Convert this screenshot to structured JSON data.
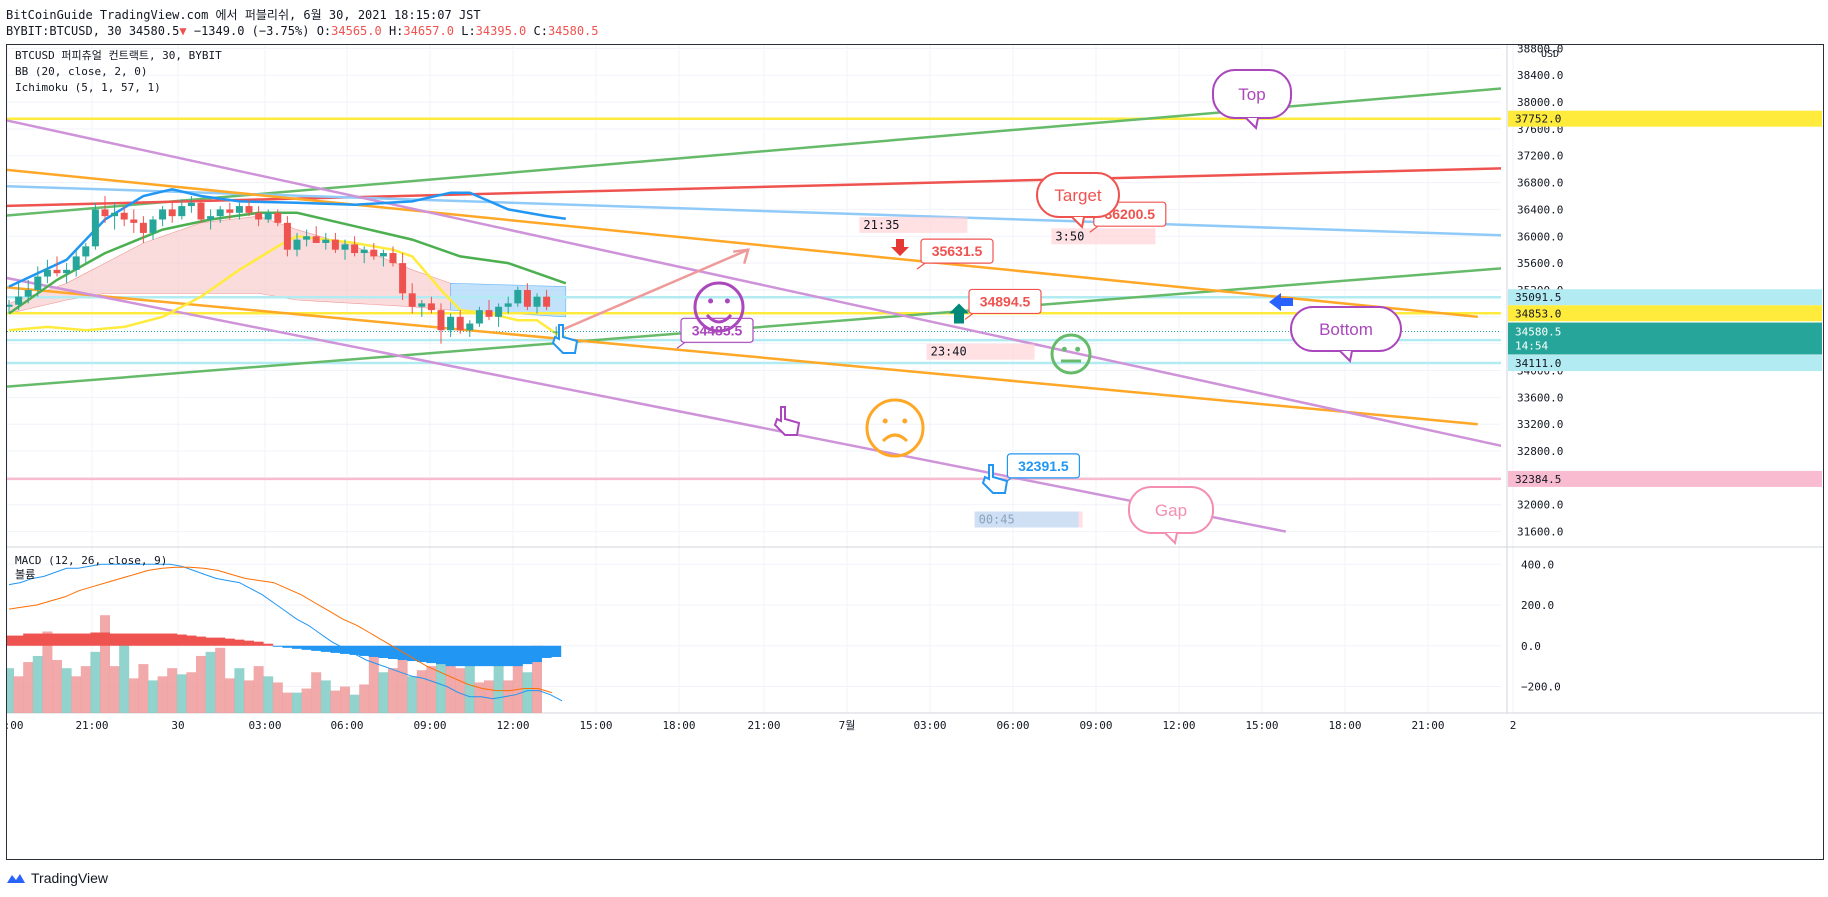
{
  "header": {
    "line1": "BitCoinGuide TradingView.com 에서 퍼블리쉬, 6월 30, 2021 18:15:07 JST",
    "line2_prefix": "BYBIT:BTCUSD, 30 34580.5",
    "line2_arrow": "▼",
    "line2_change": "−1349.0 (−3.75%)",
    "o_label": "O:",
    "o": "34565.0",
    "h_label": "H:",
    "h": "34657.0",
    "l_label": "L:",
    "l": "34395.0",
    "c_label": "C:",
    "c": "34580.5"
  },
  "legend": {
    "symbol": "BTCUSD 퍼피츄얼 컨트랙트, 30, BYBIT",
    "bb": "BB (20, close, 2, 0)",
    "ichimoku": "Ichimoku (5, 1, 57, 1)",
    "macd": "MACD (12, 26, close, 9)",
    "volume": "볼륨"
  },
  "footer": {
    "brand": "TradingView"
  },
  "colors": {
    "up": "#26a69a",
    "down": "#ef5350",
    "bb_basis": "#2196f3",
    "ichimoku_green": "#4caf50",
    "ichimoku_yellow": "#ffeb3b",
    "trend_green": "#66bb6a",
    "trend_red": "#ef5350",
    "trend_orange": "#ffa726",
    "trend_purple": "#ce93d8",
    "trend_blue": "#90caf9",
    "pink": "#f48fb1"
  },
  "chart_data": [
    {
      "type": "candlestick",
      "title": "BTCUSD 퍼피츄얼 컨트랙트, 30, BYBIT",
      "y_unit": "USD",
      "ylim": [
        31400,
        38850
      ],
      "y_ticks": [
        31600,
        32000,
        32400,
        32800,
        33200,
        33600,
        34000,
        34400,
        34800,
        35200,
        35600,
        36000,
        36400,
        36800,
        37200,
        37600,
        38000,
        38400,
        38800
      ],
      "x_ticks": [
        "18:00",
        "21:00",
        "30",
        "03:00",
        "06:00",
        "09:00",
        "12:00",
        "15:00",
        "18:00",
        "21:00",
        "7월",
        "03:00",
        "06:00",
        "09:00",
        "12:00",
        "15:00",
        "18:00",
        "21:00",
        "2"
      ],
      "candles": [
        [
          34950,
          35050,
          34850,
          34980
        ],
        [
          34980,
          35300,
          34900,
          35100
        ],
        [
          35100,
          35350,
          35000,
          35200
        ],
        [
          35200,
          35550,
          35100,
          35400
        ],
        [
          35400,
          35650,
          35300,
          35500
        ],
        [
          35500,
          35700,
          35400,
          35450
        ],
        [
          35450,
          35600,
          35300,
          35500
        ],
        [
          35500,
          35800,
          35400,
          35700
        ],
        [
          35700,
          35900,
          35600,
          35850
        ],
        [
          35850,
          36500,
          35800,
          36400
        ],
        [
          36400,
          36600,
          36200,
          36300
        ],
        [
          36300,
          36500,
          36100,
          36350
        ],
        [
          36350,
          36450,
          36150,
          36250
        ],
        [
          36250,
          36400,
          36050,
          36200
        ],
        [
          36200,
          36300,
          35900,
          36050
        ],
        [
          36050,
          36300,
          35950,
          36250
        ],
        [
          36250,
          36450,
          36150,
          36400
        ],
        [
          36400,
          36500,
          36200,
          36300
        ],
        [
          36300,
          36550,
          36250,
          36450
        ],
        [
          36450,
          36600,
          36350,
          36500
        ],
        [
          36500,
          36550,
          36200,
          36250
        ],
        [
          36250,
          36400,
          36100,
          36300
        ],
        [
          36300,
          36450,
          36200,
          36400
        ],
        [
          36400,
          36500,
          36250,
          36350
        ],
        [
          36350,
          36500,
          36250,
          36450
        ],
        [
          36450,
          36550,
          36300,
          36350
        ],
        [
          36350,
          36450,
          36150,
          36250
        ],
        [
          36250,
          36400,
          36200,
          36350
        ],
        [
          36350,
          36400,
          36150,
          36200
        ],
        [
          36200,
          36300,
          35700,
          35800
        ],
        [
          35800,
          36050,
          35700,
          35950
        ],
        [
          35950,
          36100,
          35850,
          36000
        ],
        [
          36000,
          36150,
          35900,
          35900
        ],
        [
          35900,
          36050,
          35800,
          35950
        ],
        [
          35950,
          36050,
          35750,
          35800
        ],
        [
          35800,
          35950,
          35650,
          35880
        ],
        [
          35880,
          36000,
          35700,
          35750
        ],
        [
          35750,
          35850,
          35600,
          35800
        ],
        [
          35800,
          35900,
          35650,
          35700
        ],
        [
          35700,
          35800,
          35550,
          35750
        ],
        [
          35750,
          35850,
          35550,
          35600
        ],
        [
          35600,
          35750,
          35050,
          35150
        ],
        [
          35150,
          35300,
          34850,
          34950
        ],
        [
          34950,
          35050,
          34800,
          35000
        ],
        [
          35000,
          35100,
          34850,
          34900
        ],
        [
          34900,
          35000,
          34400,
          34600
        ],
        [
          34600,
          34850,
          34500,
          34800
        ],
        [
          34800,
          34900,
          34550,
          34600
        ],
        [
          34600,
          34750,
          34500,
          34700
        ],
        [
          34700,
          34950,
          34650,
          34900
        ],
        [
          34900,
          35050,
          34750,
          34800
        ],
        [
          34800,
          35000,
          34650,
          34950
        ],
        [
          34950,
          35100,
          34850,
          35000
        ],
        [
          35000,
          35250,
          34950,
          35200
        ],
        [
          35200,
          35300,
          34900,
          34950
        ],
        [
          34950,
          35150,
          34850,
          35100
        ],
        [
          35100,
          35200,
          34900,
          34950
        ],
        [
          34565,
          34657,
          34395,
          34580.5
        ]
      ],
      "bb_basis": [
        [
          0,
          35250
        ],
        [
          6,
          35650
        ],
        [
          10,
          36250
        ],
        [
          14,
          36600
        ],
        [
          17,
          36700
        ],
        [
          20,
          36600
        ],
        [
          24,
          36520
        ],
        [
          30,
          36500
        ],
        [
          36,
          36470
        ],
        [
          42,
          36520
        ],
        [
          46,
          36650
        ],
        [
          48,
          36650
        ],
        [
          52,
          36400
        ],
        [
          56,
          36300
        ],
        [
          58,
          36260
        ]
      ],
      "ichimoku_green": [
        [
          0,
          34850
        ],
        [
          5,
          35350
        ],
        [
          10,
          35750
        ],
        [
          16,
          36100
        ],
        [
          21,
          36250
        ],
        [
          26,
          36350
        ],
        [
          30,
          36350
        ],
        [
          36,
          36150
        ],
        [
          42,
          35950
        ],
        [
          47,
          35700
        ],
        [
          52,
          35600
        ],
        [
          55,
          35450
        ],
        [
          58,
          35300
        ]
      ],
      "ichimoku_yellow": [
        [
          0,
          34600
        ],
        [
          4,
          34650
        ],
        [
          8,
          34600
        ],
        [
          12,
          34650
        ],
        [
          16,
          34800
        ],
        [
          20,
          35100
        ],
        [
          24,
          35500
        ],
        [
          28,
          35850
        ],
        [
          30,
          36000
        ],
        [
          33,
          35950
        ],
        [
          36,
          35900
        ],
        [
          40,
          35800
        ],
        [
          42,
          35700
        ],
        [
          45,
          35200
        ],
        [
          47,
          34900
        ],
        [
          50,
          34850
        ],
        [
          53,
          34750
        ],
        [
          55,
          34750
        ],
        [
          57,
          34550
        ],
        [
          58,
          34500
        ]
      ],
      "cloud_upper": [
        [
          0,
          35000
        ],
        [
          6,
          35300
        ],
        [
          10,
          35600
        ],
        [
          14,
          35900
        ],
        [
          20,
          36200
        ],
        [
          26,
          36300
        ],
        [
          30,
          36100
        ],
        [
          36,
          35850
        ],
        [
          42,
          35500
        ],
        [
          46,
          35300
        ],
        [
          58,
          35250
        ]
      ],
      "cloud_lower": [
        [
          0,
          34850
        ],
        [
          6,
          35050
        ],
        [
          10,
          35150
        ],
        [
          14,
          35150
        ],
        [
          20,
          35150
        ],
        [
          26,
          35150
        ],
        [
          30,
          35050
        ],
        [
          36,
          35000
        ],
        [
          42,
          34950
        ],
        [
          46,
          34900
        ],
        [
          58,
          34800
        ]
      ],
      "cloud_up_from": 46,
      "horizontal_levels": [
        {
          "value": 37752.0,
          "label": "37752.0",
          "color": "#ffeb3b"
        },
        {
          "value": 35091.5,
          "label": "35091.5",
          "color": "#b2ebf2"
        },
        {
          "value": 34853.0,
          "label": "34853.0",
          "color": "#ffeb3b"
        },
        {
          "value": 34453.5,
          "label": "34453.5",
          "color": "#b2ebf2"
        },
        {
          "value": 34111.0,
          "label": "34111.0",
          "color": "#b2ebf2"
        },
        {
          "value": 32384.5,
          "label": "32384.5",
          "color": "#f8bbd0"
        }
      ],
      "last_price": {
        "value": 34580.5,
        "label": "34580.5",
        "countdown": "14:54"
      },
      "trend_lines": [
        {
          "color": "#66bb6a",
          "from": [
            -1,
            36300
          ],
          "to": [
            180,
            38500
          ]
        },
        {
          "color": "#66bb6a",
          "from": [
            -1,
            33750
          ],
          "to": [
            180,
            35800
          ]
        },
        {
          "color": "#ef5350",
          "from": [
            -1,
            36450
          ],
          "to": [
            180,
            37100
          ]
        },
        {
          "color": "#90caf9",
          "from": [
            -1,
            36750
          ],
          "to": [
            180,
            35900
          ]
        },
        {
          "color": "#ffa726",
          "from": [
            -1,
            37000
          ],
          "to": [
            153,
            34800
          ]
        },
        {
          "color": "#ffa726",
          "from": [
            -1,
            35250
          ],
          "to": [
            153,
            33200
          ]
        },
        {
          "color": "#ce93d8",
          "from": [
            -1,
            37750
          ],
          "to": [
            174,
            32300
          ]
        },
        {
          "color": "#ce93d8",
          "from": [
            -1,
            35400
          ],
          "to": [
            133,
            31600
          ]
        }
      ],
      "price_labels": [
        {
          "text": "36200.5",
          "color": "#ef5350",
          "at": [
            113,
            36150
          ]
        },
        {
          "text": "35631.5",
          "color": "#ef5350",
          "at": [
            95,
            35600
          ]
        },
        {
          "text": "34894.5",
          "color": "#ef5350",
          "at": [
            100,
            34850
          ]
        },
        {
          "text": "34485.5",
          "color": "#ab47bc",
          "at": [
            70,
            34420
          ]
        },
        {
          "text": "32391.5",
          "color": "#2196f3",
          "at": [
            104,
            32400
          ]
        }
      ],
      "time_labels": [
        {
          "text": "21:35",
          "at": [
            89,
            36140
          ]
        },
        {
          "text": "3:50",
          "at": [
            109,
            35970
          ]
        },
        {
          "text": "23:40",
          "at": [
            96,
            34250
          ]
        },
        {
          "text": "00:45",
          "at": [
            101,
            31750
          ]
        }
      ],
      "callouts": [
        {
          "text": "Top",
          "color": "#ab47bc"
        },
        {
          "text": "Target",
          "color": "#ef5350"
        },
        {
          "text": "Bottom",
          "color": "#ab47bc"
        },
        {
          "text": "Gap",
          "color": "#f48fb1"
        }
      ]
    },
    {
      "type": "bar",
      "title": "MACD (12, 26, close, 9)",
      "ylim": [
        -330,
        470
      ],
      "y_ticks": [
        400,
        200,
        0,
        -200
      ],
      "y_tick_labels": [
        "400.0",
        "200.0",
        "0.0",
        "−200.0"
      ],
      "series": [
        {
          "name": "볼륨",
          "values": [
            220,
            180,
            250,
            280,
            400,
            260,
            220,
            180,
            230,
            300,
            480,
            230,
            380,
            170,
            240,
            160,
            180,
            220,
            190,
            200,
            280,
            300,
            320,
            170,
            220,
            160,
            230,
            180,
            150,
            100,
            100,
            120,
            200,
            160,
            110,
            130,
            90,
            140,
            300,
            200,
            220,
            280,
            180,
            210,
            230,
            250,
            300,
            220,
            300,
            150,
            160,
            300,
            160,
            250,
            200,
            330
          ]
        },
        {
          "name": "MACD",
          "values": [
            300,
            310,
            330,
            340,
            360,
            380,
            380,
            390,
            400,
            400,
            400,
            400,
            400,
            400,
            400,
            390,
            370,
            350,
            330,
            320,
            310,
            280,
            250,
            210,
            170,
            130,
            100,
            60,
            20,
            -10,
            -40,
            -70,
            -90,
            -110,
            -130,
            -150,
            -160,
            -180,
            -200,
            -230,
            -250,
            -250,
            -260,
            -250,
            -240,
            -220,
            -220,
            -240,
            -270
          ]
        },
        {
          "name": "Signal",
          "values": [
            180,
            190,
            200,
            220,
            240,
            270,
            290,
            310,
            330,
            350,
            370,
            380,
            385,
            385,
            380,
            370,
            350,
            330,
            320,
            310,
            280,
            250,
            210,
            170,
            130,
            100,
            60,
            20,
            -20,
            -60,
            -100,
            -130,
            -160,
            -190,
            -210,
            -220,
            -220,
            -210,
            -210,
            -230
          ]
        },
        {
          "name": "Histogram",
          "values": [
            50,
            50,
            60,
            60,
            60,
            60,
            60,
            60,
            60,
            65,
            65,
            60,
            60,
            60,
            60,
            60,
            60,
            60,
            55,
            50,
            45,
            40,
            40,
            35,
            30,
            25,
            20,
            10,
            -5,
            -10,
            -15,
            -20,
            -25,
            -30,
            -35,
            -40,
            -45,
            -50,
            -55,
            -60,
            -65,
            -70,
            -75,
            -80,
            -85,
            -90,
            -100,
            -100,
            -100,
            -100,
            -100,
            -100,
            -100,
            -100,
            -90,
            -80,
            -60,
            -55
          ]
        }
      ]
    }
  ]
}
